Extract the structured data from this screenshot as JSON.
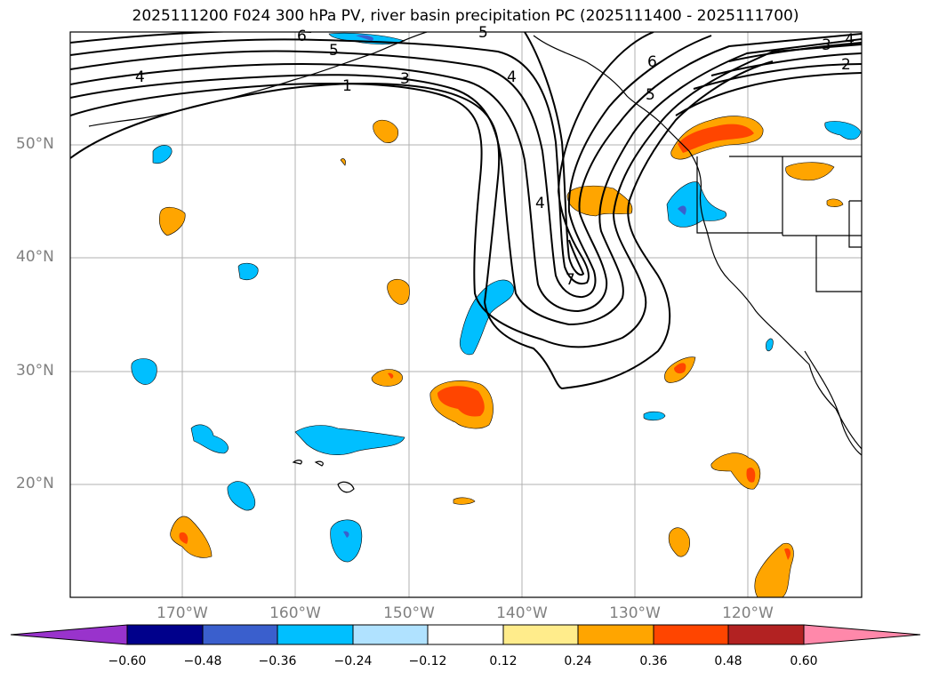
{
  "title": "2025111200 F024 300 hPa PV, river basin precipitation PC (2025111400 - 2025111700)",
  "lat_ticks": [
    "50°N",
    "40°N",
    "30°N",
    "20°N"
  ],
  "lon_ticks": [
    "170°W",
    "160°W",
    "150°W",
    "140°W",
    "130°W",
    "120°W"
  ],
  "contour_labels": [
    "6",
    "5",
    "5",
    "4",
    "1",
    "3",
    "4",
    "6",
    "5",
    "4",
    "7",
    "4",
    "3",
    "2"
  ],
  "colorbar": {
    "labels": [
      "−0.60",
      "−0.48",
      "−0.36",
      "−0.24",
      "−0.12",
      "0.12",
      "0.24",
      "0.36",
      "0.48",
      "0.60"
    ],
    "colors": [
      "#9933cc",
      "#00008b",
      "#3a5fcd",
      "#00bfff",
      "#b0e2ff",
      "#ffffff",
      "#ffec8b",
      "#ffa500",
      "#ff4500",
      "#b22222",
      "#ff88aa"
    ]
  },
  "colors": {
    "positive_orange": "#ffa500",
    "positive_red": "#ff4500",
    "negative_cyan": "#00bfff",
    "negative_blue": "#3a5fcd",
    "grid": "#b0b0b0",
    "tick_text": "#808080"
  }
}
